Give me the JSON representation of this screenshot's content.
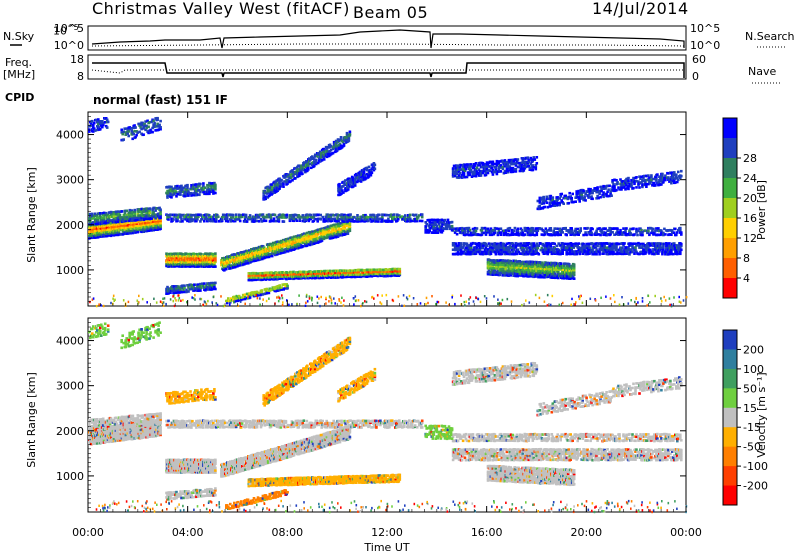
{
  "header": {
    "station": "Christmas Valley West (fitACF)",
    "beam": "Beam 05",
    "date": "14/Jul/2014"
  },
  "summary": {
    "nsky_label": "N.Sky",
    "nsearch_label": "N.Search",
    "freq_label_line1": "Freq.",
    "freq_label_line2": "[MHz]",
    "nave_label": "Nave",
    "cpid_label": "CPID",
    "cpid_value": "normal (fast) 151 IF",
    "noise_ticks": [
      "10^5",
      "10^0"
    ],
    "noise_right_ticks": [
      "10^5",
      "10^0"
    ],
    "freq_ticks": [
      "18",
      "8"
    ],
    "nave_ticks": [
      "60",
      "0"
    ]
  },
  "chart_data": [
    {
      "type": "heatmap",
      "panel": "power",
      "ylabel": "Slant Range [km]",
      "xlabel": "",
      "x_ticks": [
        "00:00",
        "04:00",
        "08:00",
        "12:00",
        "16:00",
        "20:00",
        "00:00"
      ],
      "y_ticks": [
        1000,
        2000,
        3000,
        4000
      ],
      "ylim": [
        200,
        4500
      ],
      "xlim_hours": [
        0,
        24
      ],
      "colorbar": {
        "label": "Power [dB]",
        "ticks": [
          "4",
          "8",
          "12",
          "16",
          "20",
          "24",
          "28"
        ],
        "colors": [
          "#0000ff",
          "#1f3fbf",
          "#2f7f5f",
          "#3faf3f",
          "#9fcf1f",
          "#ffcf00",
          "#ff9f00",
          "#ff5f00",
          "#ff0000"
        ]
      }
    },
    {
      "type": "heatmap",
      "panel": "velocity",
      "ylabel": "Slant Range [km]",
      "xlabel": "Time UT",
      "x_ticks": [
        "00:00",
        "04:00",
        "08:00",
        "12:00",
        "16:00",
        "20:00",
        "00:00"
      ],
      "y_ticks": [
        1000,
        2000,
        3000,
        4000
      ],
      "ylim": [
        200,
        4500
      ],
      "xlim_hours": [
        0,
        24
      ],
      "colorbar": {
        "label": "Velocity [m s⁻¹]",
        "ticks": [
          "200",
          "100",
          "50",
          "15",
          "-15",
          "-50",
          "-100",
          "-200"
        ],
        "colors": [
          "#1f3fbf",
          "#2f7f9f",
          "#3f9f5f",
          "#6fcf3f",
          "#c0c0c0",
          "#ffaf00",
          "#ff7f00",
          "#ff3f00",
          "#ff0000"
        ]
      }
    }
  ],
  "colors": {
    "ground_scatter": "#c0c0c0",
    "axis": "#000000"
  }
}
